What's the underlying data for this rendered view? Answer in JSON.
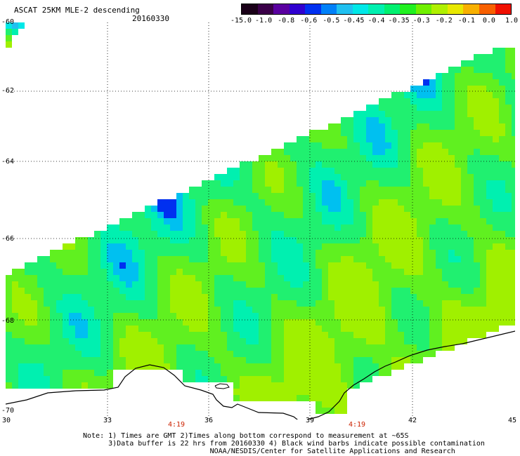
{
  "header": {
    "title": "ASCAT 25KM MLE-2 descending",
    "date": "20160330"
  },
  "colorbar": {
    "colors": [
      "#1a0018",
      "#3a0048",
      "#5a00a0",
      "#3000d0",
      "#0030f0",
      "#0080f8",
      "#20c0f0",
      "#00e8e8",
      "#00f0b0",
      "#00f070",
      "#20f020",
      "#70f000",
      "#b0f000",
      "#e8e800",
      "#f8b000",
      "#f86000",
      "#f01000"
    ],
    "labels": [
      "-15.0",
      "-1.0",
      "-0.8",
      "-0.6",
      "-0.5",
      "-0.45",
      "-0.4",
      "-0.35",
      "-0.3",
      "-0.2",
      "-0.1",
      "0.0",
      "1.0"
    ]
  },
  "axes": {
    "lon_ticks": [
      "30",
      "33",
      "36",
      "39",
      "42",
      "45"
    ],
    "lat_ticks": [
      "-60",
      "-62",
      "-64",
      "-66",
      "-68",
      "-70"
    ],
    "lon_range": [
      30,
      45
    ],
    "lat_range": [
      -70,
      -60
    ],
    "grid": "dotted"
  },
  "times": [
    "4:19",
    "4:19"
  ],
  "notes": [
    "Note: 1) Times are GMT 2)Times along bottom correspond to measurement at ~65S",
    "      3)Data buffer is 22 hrs from 20160330 4) Black wind barbs indicate possible contamination",
    "                              NOAA/NESDIS/Center for Satellite Applications and Research"
  ],
  "colors": {
    "coastline": "#000000",
    "background": "#ffffff"
  }
}
